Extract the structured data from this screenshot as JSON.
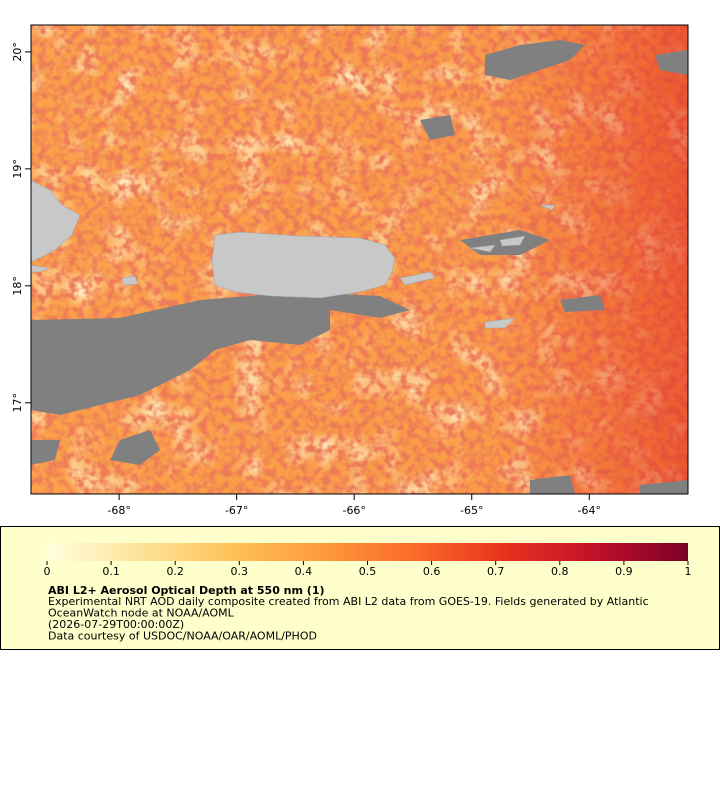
{
  "map": {
    "lon_lim": [
      -68.75,
      -63.16
    ],
    "lat_lim": [
      16.22,
      20.23
    ],
    "lon_ticks": [
      {
        "value": -68,
        "label": "-68°"
      },
      {
        "value": -67,
        "label": "-67°"
      },
      {
        "value": -66,
        "label": "-66°"
      },
      {
        "value": -65,
        "label": "-65°"
      },
      {
        "value": -64,
        "label": "-64°"
      }
    ],
    "lat_ticks": [
      {
        "value": 20,
        "label": "20°"
      },
      {
        "value": 19,
        "label": "19°"
      },
      {
        "value": 18,
        "label": "18°"
      },
      {
        "value": 17,
        "label": "17°"
      }
    ]
  },
  "colorbar": {
    "lim": [
      0,
      1
    ],
    "ticks": [
      0,
      0.1,
      0.2,
      0.3,
      0.4,
      0.5,
      0.6,
      0.7,
      0.8,
      0.9,
      1
    ],
    "colors": [
      "#ffffe0",
      "#fee39a",
      "#fec25a",
      "#fd9a3c",
      "#fc6a2a",
      "#e8321e",
      "#c0102a",
      "#7a0026"
    ]
  },
  "caption": {
    "title": "ABI L2+ Aerosol Optical Depth at 550 nm (1)",
    "lines": [
      "Experimental NRT AOD daily composite created from ABI L2 data from GOES-19. Fields generated by Atlantic",
      "OceanWatch node at NOAA/AOML",
      "(2026-07-29T00:00:00Z)",
      "Data courtesy of USDOC/NOAA/OAR/AOML/PHOD"
    ]
  }
}
